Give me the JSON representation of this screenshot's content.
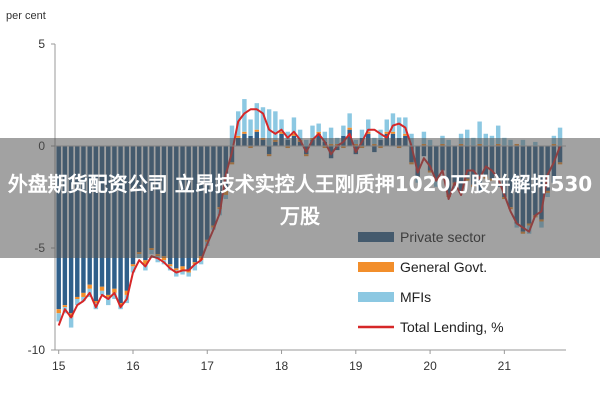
{
  "headline": "外盘期货配资公司 立昂技术实控人王刚质押1020万股并解押530万股",
  "chart_data": {
    "type": "bar",
    "ylabel": "per cent",
    "ylim": [
      -10,
      5
    ],
    "yticks": [
      5,
      0,
      -5,
      -10
    ],
    "x_ticks": [
      {
        "label": "15",
        "x": 2015.0
      },
      {
        "label": "16",
        "x": 2016.0
      },
      {
        "label": "17",
        "x": 2017.0
      },
      {
        "label": "18",
        "x": 2018.0
      },
      {
        "label": "19",
        "x": 2019.0
      },
      {
        "label": "20",
        "x": 2020.0
      },
      {
        "label": "21",
        "x": 2021.0
      }
    ],
    "xlim": [
      2014.95,
      2021.83
    ],
    "x": [
      2015.0,
      2015.083,
      2015.167,
      2015.25,
      2015.333,
      2015.417,
      2015.5,
      2015.583,
      2015.667,
      2015.75,
      2015.833,
      2015.917,
      2016.0,
      2016.083,
      2016.167,
      2016.25,
      2016.333,
      2016.417,
      2016.5,
      2016.583,
      2016.667,
      2016.75,
      2016.833,
      2016.917,
      2017.0,
      2017.083,
      2017.167,
      2017.25,
      2017.333,
      2017.417,
      2017.5,
      2017.583,
      2017.667,
      2017.75,
      2017.833,
      2017.917,
      2018.0,
      2018.083,
      2018.167,
      2018.25,
      2018.333,
      2018.417,
      2018.5,
      2018.583,
      2018.667,
      2018.75,
      2018.833,
      2018.917,
      2019.0,
      2019.083,
      2019.167,
      2019.25,
      2019.333,
      2019.417,
      2019.5,
      2019.583,
      2019.667,
      2019.75,
      2019.833,
      2019.917,
      2020.0,
      2020.083,
      2020.167,
      2020.25,
      2020.333,
      2020.417,
      2020.5,
      2020.583,
      2020.667,
      2020.75,
      2020.833,
      2020.917,
      2021.0,
      2021.083,
      2021.167,
      2021.25,
      2021.333,
      2021.417,
      2021.5,
      2021.583,
      2021.667,
      2021.75
    ],
    "series": [
      {
        "name": "Private sector",
        "color": "#2f5f8a",
        "values": [
          -8.0,
          -7.8,
          -8.2,
          -7.4,
          -7.2,
          -6.8,
          -7.6,
          -6.9,
          -7.3,
          -7.0,
          -7.7,
          -7.1,
          -5.8,
          -5.2,
          -5.6,
          -5.0,
          -5.3,
          -5.4,
          -5.8,
          -6.0,
          -5.9,
          -6.1,
          -5.7,
          -5.4,
          -4.6,
          -3.9,
          -3.0,
          -2.2,
          -0.8,
          0.4,
          0.6,
          0.5,
          0.7,
          0.3,
          -0.4,
          0.2,
          0.6,
          0.3,
          0.5,
          0.2,
          -0.4,
          0.3,
          0.6,
          0.2,
          -0.6,
          -0.2,
          0.5,
          0.8,
          -0.4,
          0.4,
          0.6,
          -0.3,
          0.3,
          0.6,
          0.6,
          0.4,
          0.5,
          -0.8,
          -1.5,
          -0.5,
          -1.2,
          -1.6,
          -1.2,
          -2.4,
          -1.8,
          -2.3,
          -1.6,
          -1.9,
          -2.2,
          -1.5,
          -1.6,
          -2.0,
          -2.5,
          -3.0,
          -3.8,
          -4.2,
          -3.8,
          -3.4,
          -3.6,
          -2.2,
          -1.8,
          -0.8
        ]
      },
      {
        "name": "General Govt.",
        "color": "#f28e2b",
        "values": [
          -0.2,
          -0.1,
          -0.2,
          -0.1,
          -0.2,
          -0.2,
          -0.1,
          -0.2,
          -0.1,
          -0.2,
          -0.1,
          -0.2,
          -0.1,
          -0.1,
          -0.2,
          -0.1,
          -0.1,
          -0.2,
          -0.1,
          -0.1,
          -0.2,
          -0.1,
          -0.1,
          -0.2,
          -0.1,
          -0.1,
          -0.1,
          -0.2,
          -0.1,
          0.1,
          0.1,
          -0.1,
          0.1,
          0.1,
          -0.1,
          0.1,
          0.1,
          -0.1,
          0.1,
          0.1,
          -0.1,
          0.1,
          0.1,
          -0.1,
          0.1,
          0.1,
          -0.1,
          0.1,
          0.1,
          -0.1,
          0.1,
          0.1,
          -0.1,
          0.1,
          0.1,
          -0.1,
          0.1,
          -0.1,
          -0.1,
          0.1,
          -0.1,
          -0.1,
          0.1,
          -0.1,
          -0.1,
          0.1,
          -0.1,
          -0.1,
          0.1,
          -0.1,
          -0.1,
          0.1,
          -0.1,
          -0.1,
          0.1,
          -0.1,
          -0.1,
          -0.1,
          -0.1,
          -0.1,
          0.1,
          -0.1
        ]
      },
      {
        "name": "MFIs",
        "color": "#8cc8e2",
        "values": [
          -0.4,
          -0.3,
          -0.5,
          -0.3,
          -0.2,
          -0.4,
          -0.3,
          -0.2,
          -0.4,
          -0.3,
          -0.2,
          -0.4,
          -0.3,
          -0.2,
          -0.3,
          -0.2,
          -0.3,
          -0.2,
          -0.2,
          -0.3,
          -0.2,
          -0.2,
          -0.3,
          -0.2,
          -0.2,
          -0.1,
          -0.3,
          -0.2,
          1.0,
          1.2,
          1.6,
          0.8,
          1.3,
          1.5,
          1.8,
          1.4,
          0.6,
          0.4,
          0.8,
          0.5,
          0.3,
          0.6,
          0.4,
          0.5,
          0.8,
          0.3,
          0.5,
          0.7,
          0.2,
          0.4,
          0.6,
          0.3,
          0.5,
          0.6,
          0.9,
          1.0,
          0.8,
          0.6,
          -0.2,
          0.6,
          0.3,
          -0.3,
          0.4,
          0.3,
          -0.2,
          0.5,
          0.8,
          0.4,
          1.1,
          0.6,
          0.5,
          0.9,
          0.4,
          0.3,
          -0.2,
          0.3,
          -0.4,
          0.2,
          -0.3,
          -0.2,
          0.4,
          0.9
        ]
      }
    ],
    "total_lending": {
      "name": "Total Lending, %",
      "color": "#d62728",
      "values": [
        -8.8,
        -8.0,
        -8.4,
        -7.8,
        -7.6,
        -7.2,
        -7.9,
        -7.3,
        -7.5,
        -7.2,
        -7.9,
        -7.5,
        -6.2,
        -5.6,
        -5.9,
        -5.4,
        -5.5,
        -5.7,
        -6.0,
        -6.2,
        -6.1,
        -6.1,
        -5.8,
        -5.6,
        -4.8,
        -4.1,
        -3.3,
        -1.4,
        -0.3,
        1.2,
        1.6,
        1.8,
        1.8,
        1.6,
        0.8,
        0.6,
        0.8,
        0.4,
        0.7,
        0.3,
        -0.3,
        0.3,
        0.6,
        0.2,
        -0.4,
        0.0,
        0.2,
        0.6,
        -0.3,
        0.2,
        0.8,
        0.8,
        0.6,
        0.4,
        1.0,
        1.1,
        0.9,
        0.0,
        -1.3,
        -0.6,
        -1.0,
        -1.7,
        -1.2,
        -2.6,
        -1.8,
        -2.4,
        -1.2,
        -1.2,
        -1.6,
        -1.0,
        -1.2,
        -1.6,
        -2.4,
        -3.2,
        -3.8,
        -4.0,
        -4.2,
        -3.4,
        -3.2,
        -1.4,
        -0.8,
        0.0
      ]
    },
    "legend": {
      "placement": "bottom-right",
      "entries": [
        {
          "label": "Private sector",
          "kind": "box",
          "color": "#2f5f8a"
        },
        {
          "label": "General Govt.",
          "kind": "box",
          "color": "#f28e2b"
        },
        {
          "label": "MFIs",
          "kind": "box",
          "color": "#8cc8e2"
        },
        {
          "label": "Total Lending, %",
          "kind": "line",
          "color": "#d62728"
        }
      ]
    },
    "grid": false
  }
}
